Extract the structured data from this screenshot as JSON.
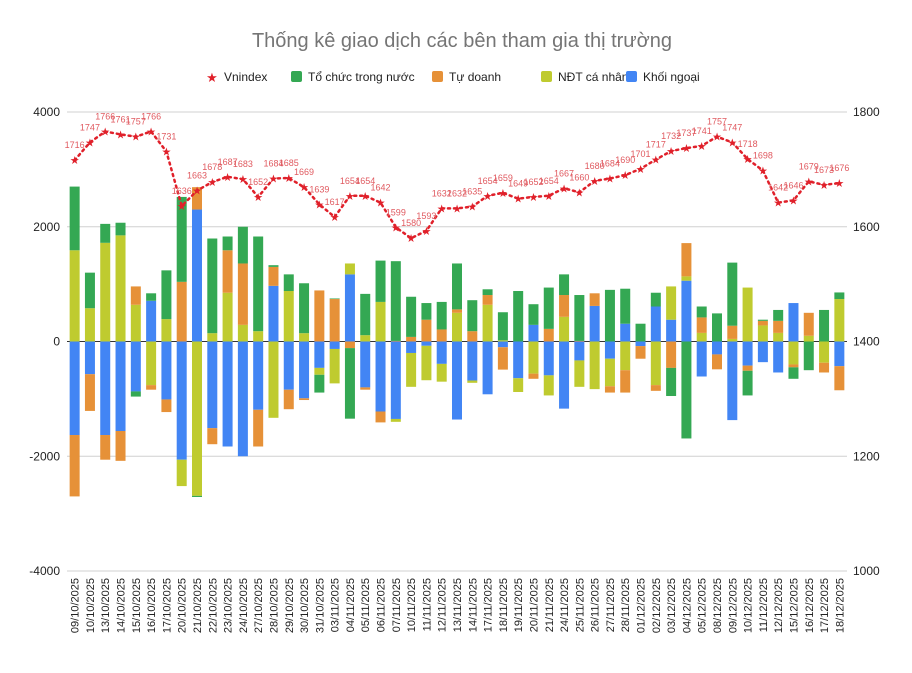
{
  "chart_data": {
    "type": "bar",
    "stacked": true,
    "title": "Thống kê giao dịch các bên tham gia thị trường",
    "legend_position": "top",
    "grid": true,
    "ylim_left": [
      -4000,
      4000
    ],
    "yticks_left": [
      "4000",
      "2000",
      "0",
      "-2000",
      "-4000"
    ],
    "ylim_right": [
      1000,
      1800
    ],
    "yticks_right": [
      "1800",
      "1600",
      "1400",
      "1200",
      "1000"
    ],
    "categories": [
      "09/10/2025",
      "10/10/2025",
      "13/10/2025",
      "14/10/2025",
      "15/10/2025",
      "16/10/2025",
      "17/10/2025",
      "20/10/2025",
      "21/10/2025",
      "22/10/2025",
      "23/10/2025",
      "24/10/2025",
      "27/10/2025",
      "28/10/2025",
      "29/10/2025",
      "30/10/2025",
      "31/10/2025",
      "03/11/2025",
      "04/11/2025",
      "05/11/2025",
      "06/11/2025",
      "07/11/2025",
      "10/11/2025",
      "11/11/2025",
      "12/11/2025",
      "13/11/2025",
      "14/11/2025",
      "17/11/2025",
      "18/11/2025",
      "19/11/2025",
      "20/11/2025",
      "21/11/2025",
      "24/11/2025",
      "25/11/2025",
      "26/11/2025",
      "27/11/2025",
      "28/11/2025",
      "01/12/2025",
      "02/12/2025",
      "03/12/2025",
      "04/12/2025",
      "05/12/2025",
      "08/12/2025",
      "09/12/2025",
      "10/12/2025",
      "11/12/2025",
      "12/12/2025",
      "15/12/2025",
      "16/12/2025",
      "17/12/2025",
      "18/12/2025"
    ],
    "line_series": {
      "name": "Vnindex",
      "axis": "right",
      "color": "#e0202a",
      "values": [
        1716,
        1747,
        1766,
        1761,
        1757,
        1766,
        1731,
        1636,
        1663,
        1678,
        1687,
        1683,
        1652,
        1684,
        1685,
        1669,
        1639,
        1617,
        1654,
        1654,
        1642,
        1599,
        1580,
        1593,
        1632,
        1632,
        1635,
        1654,
        1659,
        1649,
        1652,
        1654,
        1667,
        1660,
        1680,
        1684,
        1690,
        1701,
        1717,
        1732,
        1737,
        1741,
        1757,
        1747,
        1718,
        1698,
        1642,
        1646,
        1679,
        1673,
        1676
      ]
    },
    "series": [
      {
        "name": "Tổ chức trong nước",
        "color": "#34a853",
        "values": [
          1110,
          620,
          330,
          220,
          -90,
          130,
          850,
          1480,
          -20,
          1650,
          240,
          640,
          1650,
          30,
          290,
          870,
          -310,
          10,
          -1230,
          720,
          720,
          1390,
          700,
          290,
          480,
          800,
          540,
          100,
          490,
          880,
          360,
          720,
          360,
          800,
          0,
          900,
          610,
          310,
          240,
          -490,
          -1690,
          190,
          490,
          1100,
          -430,
          20,
          190,
          -200,
          -500,
          550,
          115
        ]
      },
      {
        "name": "Tự doanh",
        "color": "#e69138",
        "values": [
          -1070,
          -640,
          -430,
          -520,
          320,
          -80,
          -220,
          1040,
          390,
          -280,
          740,
          1070,
          -640,
          330,
          -340,
          -30,
          890,
          740,
          -115,
          -40,
          -190,
          10,
          80,
          380,
          210,
          60,
          180,
          170,
          -390,
          0,
          -90,
          220,
          380,
          10,
          220,
          -110,
          -390,
          -220,
          -100,
          -460,
          580,
          270,
          -260,
          230,
          -90,
          80,
          210,
          -50,
          400,
          -170,
          -420
        ]
      },
      {
        "name": "NĐT cá nhân",
        "color": "#bfcb2f",
        "values": [
          1590,
          580,
          1720,
          1850,
          640,
          -760,
          390,
          -460,
          -2690,
          145,
          850,
          290,
          180,
          -1330,
          880,
          145,
          -120,
          -600,
          190,
          110,
          690,
          -50,
          -590,
          -600,
          -310,
          500,
          -40,
          640,
          20,
          -240,
          -560,
          -350,
          430,
          -460,
          -830,
          -480,
          -500,
          0,
          -760,
          580,
          75,
          150,
          0,
          45,
          940,
          280,
          150,
          -400,
          100,
          -370,
          740
        ]
      },
      {
        "name": "Khối ngoại",
        "color": "#4285f4",
        "values": [
          -1630,
          -570,
          -1630,
          -1560,
          -870,
          710,
          -1010,
          -2060,
          2300,
          -1510,
          -1830,
          -2000,
          -1190,
          970,
          -840,
          -990,
          -460,
          -130,
          1170,
          -800,
          -1220,
          -1350,
          -200,
          -75,
          -390,
          -1360,
          -680,
          -920,
          -100,
          -640,
          290,
          -590,
          -1170,
          -330,
          620,
          -300,
          310,
          -80,
          610,
          380,
          1060,
          -610,
          -225,
          -1370,
          -420,
          -360,
          -540,
          670,
          0,
          0,
          -430
        ]
      }
    ],
    "stack_order": [
      "Khối ngoại",
      "NĐT cá nhân",
      "Tự doanh",
      "Tổ chức trong nước"
    ]
  }
}
